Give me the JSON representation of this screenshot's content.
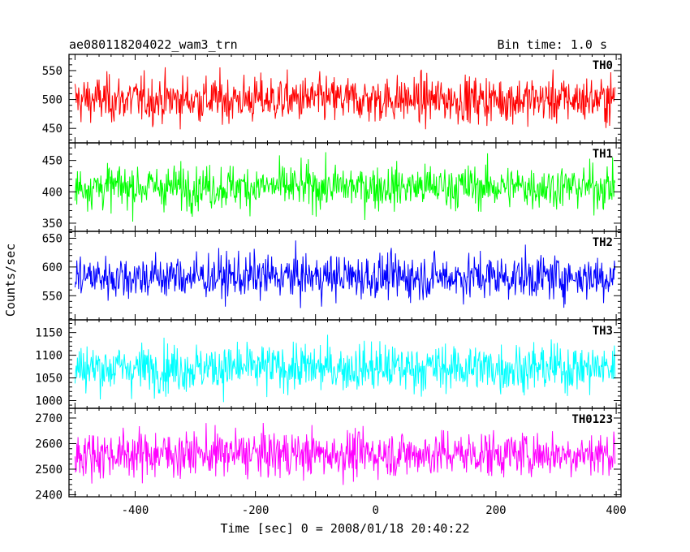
{
  "title_left": "ae080118204022_wam3_trn",
  "title_right": "Bin time: 1.0 s",
  "ylabel": "Counts/sec",
  "xlabel": "Time [sec] 0 = 2008/01/18 20:40:22",
  "x_ticks": [
    -400,
    -200,
    0,
    200,
    400
  ],
  "chart_data": {
    "type": "line",
    "x_range": [
      -510,
      408
    ],
    "bin_time_s": 1.0,
    "series": [
      {
        "name": "TH0",
        "color": "#ff0000",
        "ylim": [
          425,
          578
        ],
        "yticks": [
          450,
          500,
          550
        ],
        "mean": 500,
        "spread": 38
      },
      {
        "name": "TH1",
        "color": "#00ff00",
        "ylim": [
          337,
          478
        ],
        "yticks": [
          350,
          400,
          450
        ],
        "mean": 408,
        "spread": 33
      },
      {
        "name": "TH2",
        "color": "#0000ff",
        "ylim": [
          508,
          662
        ],
        "yticks": [
          550,
          600,
          650
        ],
        "mean": 583,
        "spread": 37
      },
      {
        "name": "TH3",
        "color": "#00ffff",
        "ylim": [
          983,
          1178
        ],
        "yticks": [
          1000,
          1050,
          1100,
          1150
        ],
        "mean": 1072,
        "spread": 50
      },
      {
        "name": "TH0123",
        "color": "#ff00ff",
        "ylim": [
          2392,
          2738
        ],
        "yticks": [
          2400,
          2500,
          2600,
          2700
        ],
        "mean": 2560,
        "spread": 85
      }
    ]
  }
}
